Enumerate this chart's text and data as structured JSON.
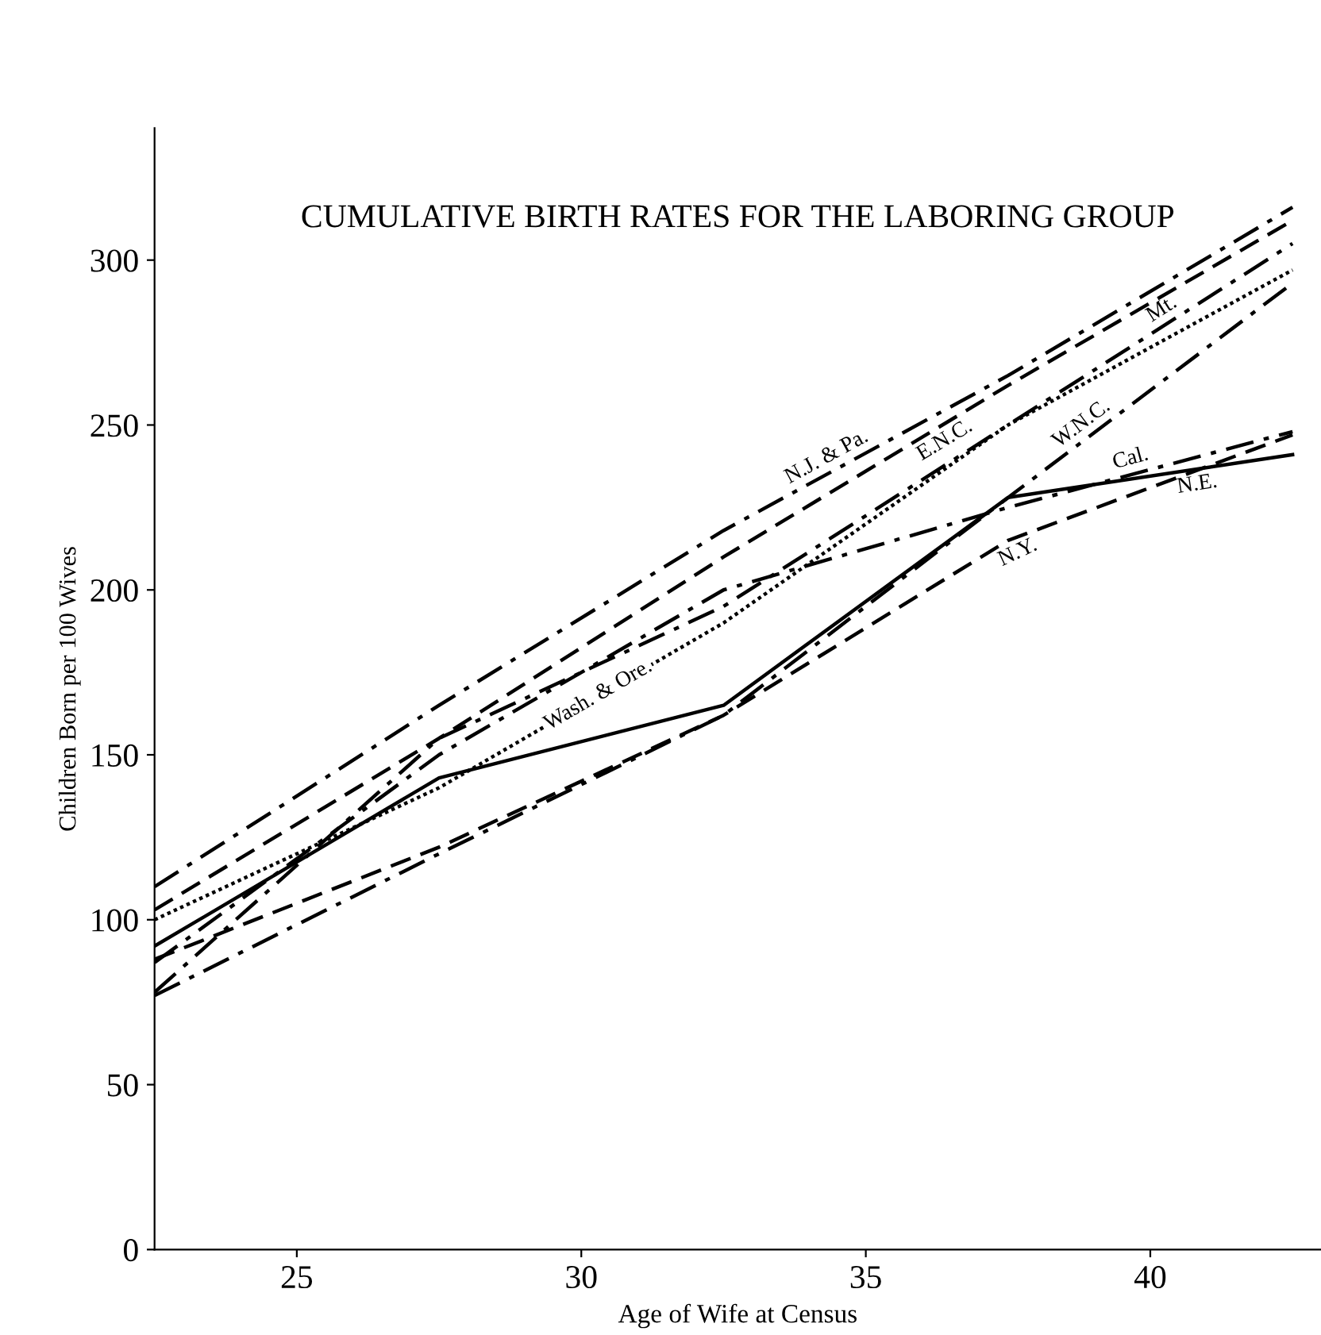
{
  "chart_data": {
    "type": "line",
    "title": "CUMULATIVE BIRTH RATES FOR THE LABORING GROUP",
    "xlabel": "Age of Wife at Census",
    "ylabel": "Children Born per 100 Wives",
    "x": [
      22.5,
      27.5,
      32.5,
      37.5,
      42.5
    ],
    "series": [
      {
        "name": "N.J. & Pa.",
        "color": "#000000",
        "line_style": "dashdot",
        "values": [
          110,
          165,
          218,
          265,
          316
        ]
      },
      {
        "name": "E.N.C.",
        "color": "#000000",
        "line_style": "dashed",
        "values": [
          103,
          155,
          210,
          262,
          312
        ]
      },
      {
        "name": "Mt.",
        "color": "#000000",
        "line_style": "dashdot",
        "values": [
          78,
          155,
          195,
          250,
          305
        ]
      },
      {
        "name": "Wash. & Ore.",
        "color": "#000000",
        "line_style": "dotted",
        "values": [
          100,
          140,
          190,
          250,
          297
        ]
      },
      {
        "name": "W.N.C.",
        "color": "#000000",
        "line_style": "dashdot",
        "values": [
          77,
          120,
          162,
          228,
          293
        ]
      },
      {
        "name": "Cal.",
        "color": "#000000",
        "line_style": "dashdot",
        "values": [
          87,
          150,
          200,
          225,
          248
        ]
      },
      {
        "name": "N.E.",
        "color": "#000000",
        "line_style": "solid",
        "values": [
          92,
          143,
          165,
          228,
          241
        ]
      },
      {
        "name": "N.Y.",
        "color": "#000000",
        "line_style": "dashed",
        "values": [
          88,
          122,
          162,
          215,
          247
        ]
      }
    ],
    "xlim": [
      22.5,
      43
    ],
    "xticks": [
      25,
      30,
      35,
      40
    ],
    "ylim": [
      0,
      340
    ],
    "yticks": [
      0,
      50,
      100,
      150,
      200,
      250,
      300
    ],
    "grid": false,
    "legend": false,
    "marker": "none"
  }
}
